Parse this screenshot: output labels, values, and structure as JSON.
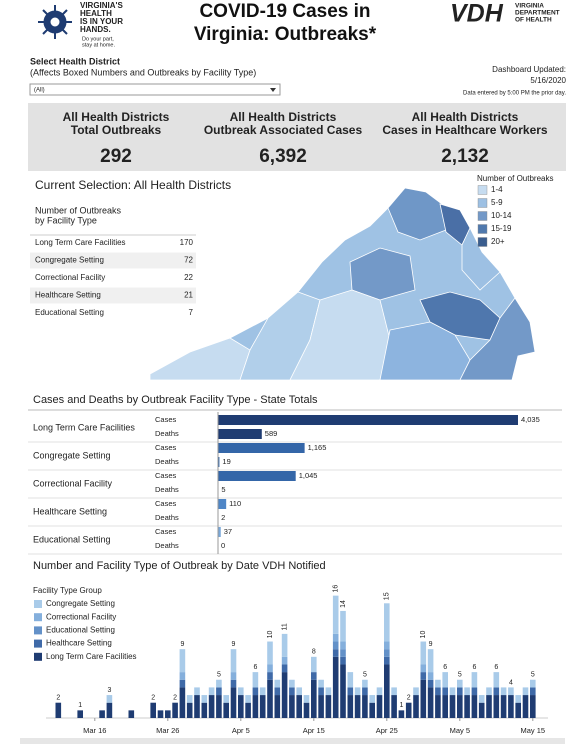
{
  "header": {
    "logo_lines": [
      "VIRGINIA'S",
      "HEALTH",
      "IS IN YOUR",
      "HANDS."
    ],
    "tagline": [
      "Do your part,",
      "stay at home."
    ],
    "title": "COVID-19 Cases in Virginia: Outbreaks*",
    "agency": "VDH",
    "agency_lines": [
      "VIRGINIA",
      "DEPARTMENT",
      "OF HEALTH"
    ]
  },
  "filter": {
    "label": "Select Health District",
    "note": "(Affects Boxed Numbers and Outbreaks by Facility Type)",
    "value": "(All)"
  },
  "updated": {
    "label": "Dashboard Updated:",
    "date": "5/16/2020",
    "note": "Data entered by 5:00 PM the prior day."
  },
  "kpis": [
    {
      "label": [
        "All Health Districts",
        "Total Outbreaks"
      ],
      "value": "292"
    },
    {
      "label": [
        "All Health Districts",
        "Outbreak Associated Cases"
      ],
      "value": "6,392"
    },
    {
      "label": [
        "All Health Districts",
        "Cases in Healthcare Workers"
      ],
      "value": "2,132"
    }
  ],
  "selection": "Current Selection: All Health Districts",
  "facility_table": {
    "title": [
      "Number of Outbreaks",
      "by Facility Type"
    ],
    "rows": [
      {
        "label": "Long Term Care Facilities",
        "value": 170
      },
      {
        "label": "Congregate Setting",
        "value": 72
      },
      {
        "label": "Correctional Facility",
        "value": 22
      },
      {
        "label": "Healthcare Setting",
        "value": 21
      },
      {
        "label": "Educational Setting",
        "value": 7
      }
    ]
  },
  "map_legend": {
    "title": "Number of Outbreaks",
    "items": [
      {
        "label": "1-4",
        "color": "#c6dcf0"
      },
      {
        "label": "5-9",
        "color": "#9dc0e3"
      },
      {
        "label": "10-14",
        "color": "#7399c8"
      },
      {
        "label": "15-19",
        "color": "#5079ad"
      },
      {
        "label": "20+",
        "color": "#3a5d8e"
      }
    ]
  },
  "chart_data": [
    {
      "type": "hbar",
      "title": "Cases and Deaths by Outbreak Facility Type - State Totals",
      "categories": [
        "Long Term Care Facilities",
        "Congregate Setting",
        "Correctional Facility",
        "Healthcare Setting",
        "Educational Setting"
      ],
      "colors": [
        "#1f3c72",
        "#3466a8",
        "#3466a8",
        "#4f86c6",
        "#79a7d8"
      ],
      "series": [
        {
          "name": "Cases",
          "values": [
            4035,
            1165,
            1045,
            110,
            37
          ],
          "value_labels": [
            "4,035",
            "1,165",
            "1,045",
            "110",
            "37"
          ]
        },
        {
          "name": "Deaths",
          "values": [
            589,
            19,
            5,
            2,
            0
          ]
        }
      ],
      "xlim": [
        0,
        4600
      ]
    },
    {
      "type": "stacked_bar",
      "title": "Number and Facility Type of Outbreak by Date VDH Notified",
      "legend_title": "Facility Type Group",
      "categories": [
        null,
        null,
        null,
        null,
        null,
        null,
        "Mar 16",
        null,
        null,
        null,
        null,
        null,
        null,
        null,
        null,
        null,
        "Mar 26",
        null,
        null,
        null,
        null,
        null,
        null,
        null,
        null,
        null,
        "Apr 5",
        null,
        null,
        null,
        null,
        null,
        null,
        null,
        null,
        null,
        "Apr 15",
        null,
        null,
        null,
        null,
        null,
        null,
        null,
        null,
        null,
        "Apr 25",
        null,
        null,
        null,
        null,
        null,
        null,
        null,
        null,
        null,
        "May 5",
        null,
        null,
        null,
        null,
        null,
        null,
        null,
        null,
        null,
        "May 15"
      ],
      "series": [
        {
          "name": "Congregate Setting",
          "color": "#a9cbe9",
          "values": [
            0,
            0,
            0,
            0,
            0,
            0,
            0,
            0,
            1,
            0,
            0,
            0,
            0,
            0,
            0,
            0,
            0,
            0,
            3,
            1,
            1,
            1,
            1,
            1,
            1,
            3,
            1,
            1,
            2,
            1,
            3,
            1,
            3,
            1,
            1,
            1,
            2,
            1,
            1,
            5,
            4,
            2,
            1,
            1,
            1,
            1,
            5,
            1,
            0,
            0,
            1,
            3,
            3,
            1,
            2,
            1,
            1,
            1,
            2,
            1,
            1,
            2,
            1,
            1,
            1,
            1,
            1
          ]
        },
        {
          "name": "Correctional Facility",
          "color": "#84afdc",
          "values": [
            0,
            0,
            0,
            0,
            0,
            0,
            0,
            0,
            0,
            0,
            0,
            0,
            0,
            0,
            0,
            0,
            0,
            0,
            1,
            0,
            0,
            0,
            0,
            0,
            0,
            1,
            0,
            0,
            0,
            0,
            1,
            0,
            1,
            0,
            0,
            0,
            0,
            0,
            0,
            1,
            1,
            0,
            0,
            0,
            0,
            0,
            1,
            0,
            0,
            0,
            0,
            1,
            1,
            0,
            0,
            0,
            0,
            0,
            0,
            0,
            0,
            0,
            0,
            0,
            0,
            0,
            0
          ]
        },
        {
          "name": "Educational Setting",
          "color": "#6391c8",
          "values": [
            0,
            0,
            0,
            0,
            0,
            0,
            0,
            0,
            0,
            0,
            0,
            0,
            0,
            0,
            0,
            0,
            0,
            0,
            0,
            0,
            0,
            0,
            0,
            0,
            0,
            0,
            0,
            0,
            0,
            0,
            0,
            0,
            0,
            0,
            0,
            0,
            0,
            0,
            0,
            1,
            1,
            0,
            0,
            0,
            0,
            0,
            1,
            0,
            0,
            0,
            0,
            0,
            0,
            0,
            0,
            0,
            0,
            0,
            0,
            0,
            0,
            0,
            0,
            0,
            0,
            0,
            0
          ]
        },
        {
          "name": "Healthcare Setting",
          "color": "#3f6aa8",
          "values": [
            0,
            0,
            0,
            0,
            0,
            0,
            0,
            0,
            0,
            0,
            0,
            0,
            0,
            0,
            0,
            0,
            0,
            0,
            1,
            0,
            0,
            0,
            0,
            1,
            0,
            1,
            0,
            0,
            1,
            0,
            1,
            1,
            1,
            1,
            0,
            0,
            1,
            1,
            0,
            1,
            1,
            1,
            0,
            1,
            0,
            0,
            1,
            0,
            0,
            0,
            0,
            1,
            1,
            1,
            1,
            0,
            1,
            0,
            1,
            0,
            0,
            1,
            0,
            0,
            0,
            0,
            1
          ]
        },
        {
          "name": "Long Term Care Facilities",
          "color": "#1f3c72",
          "values": [
            0,
            2,
            0,
            0,
            1,
            0,
            0,
            1,
            2,
            0,
            0,
            1,
            0,
            0,
            2,
            1,
            1,
            2,
            4,
            2,
            3,
            2,
            3,
            3,
            2,
            4,
            3,
            2,
            3,
            3,
            5,
            3,
            6,
            3,
            3,
            2,
            5,
            3,
            3,
            8,
            7,
            3,
            3,
            3,
            2,
            3,
            7,
            3,
            1,
            2,
            3,
            5,
            4,
            3,
            3,
            3,
            3,
            3,
            3,
            2,
            3,
            3,
            3,
            3,
            2,
            3,
            3
          ]
        }
      ],
      "total_labels": [
        null,
        2,
        null,
        null,
        1,
        null,
        null,
        null,
        3,
        null,
        null,
        null,
        null,
        null,
        2,
        null,
        null,
        2,
        9,
        null,
        null,
        null,
        null,
        5,
        null,
        9,
        null,
        null,
        6,
        null,
        10,
        null,
        11,
        null,
        null,
        null,
        8,
        null,
        null,
        16,
        14,
        null,
        null,
        5,
        null,
        null,
        15,
        null,
        1,
        2,
        null,
        10,
        9,
        null,
        6,
        null,
        5,
        null,
        6,
        null,
        null,
        6,
        null,
        4,
        null,
        null,
        5
      ],
      "ylim": [
        0,
        17
      ]
    }
  ]
}
